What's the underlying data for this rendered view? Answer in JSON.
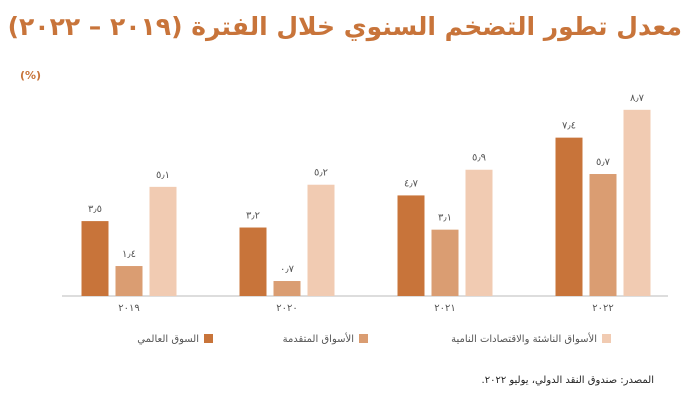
{
  "chart_data": {
    "type": "bar",
    "title": "معدل تطور التضخم السنوي خلال الفترة (٢٠١٩ – ٢٠٢٢)",
    "unit_label": "(%)",
    "source": "المصدر: صندوق النقد الدولي، يوليو ٢٠٢٢.",
    "categories": [
      "٢٠١٩",
      "٢٠٢٠",
      "٢٠٢١",
      "٢٠٢٢"
    ],
    "series": [
      {
        "name": "السوق العالمي",
        "color": "#c8743a",
        "values": [
          3.5,
          3.2,
          4.7,
          7.4
        ],
        "value_labels": [
          "٣٫٥",
          "٣٫٢",
          "٤٫٧",
          "٧٫٤"
        ]
      },
      {
        "name": "الأسواق المتقدمة",
        "color": "#da9d72",
        "values": [
          1.4,
          0.7,
          3.1,
          5.7
        ],
        "value_labels": [
          "١٫٤",
          "٠٫٧",
          "٣٫١",
          "٥٫٧"
        ]
      },
      {
        "name": "الأسواق الناشئة والاقتصادات النامية",
        "color": "#f1cbb2",
        "values": [
          5.1,
          5.2,
          5.9,
          8.7
        ],
        "value_labels": [
          "٥٫١",
          "٥٫٢",
          "٥٫٩",
          "٨٫٧"
        ]
      }
    ]
  }
}
